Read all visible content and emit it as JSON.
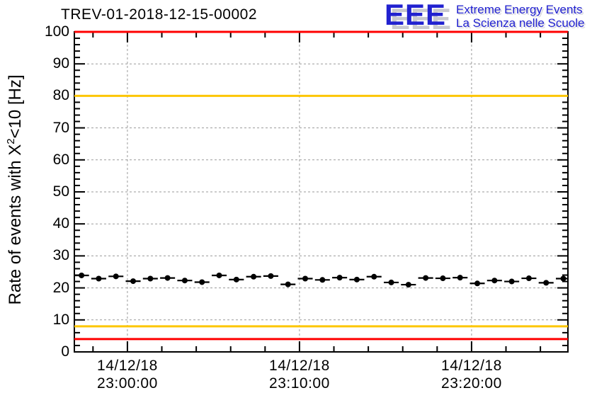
{
  "header": {
    "title": "TREV-01-2018-12-15-00002"
  },
  "logo": {
    "acronym": "EEE",
    "line1": "Extreme Energy Events",
    "line2": "La Scienza nelle Scuole",
    "blue": "#2222d0",
    "shadow_gray": "#c9c9cf"
  },
  "chart_data": {
    "type": "scatter",
    "title": "TREV-01-2018-12-15-00002",
    "ylabel": {
      "pre": "Rate of events with X",
      "sup": "2",
      "post": "<10 [Hz]"
    },
    "ylim": [
      0,
      100
    ],
    "y_major_step": 10,
    "y_minor_step": 2,
    "x_range": [
      "22:56:55",
      "23:25:36"
    ],
    "x_minor_step_seconds": 120,
    "x_ticks": [
      {
        "date": "14/12/18",
        "time": "23:00:00"
      },
      {
        "date": "14/12/18",
        "time": "23:10:00"
      },
      {
        "date": "14/12/18",
        "time": "23:20:00"
      }
    ],
    "grid": true,
    "grid_color": "#9a9a9a",
    "frame_color": "#000000",
    "thresholds": [
      {
        "value": 100,
        "color": "#ff0000"
      },
      {
        "value": 80,
        "color": "#fdc600"
      },
      {
        "value": 8,
        "color": "#fdc600"
      },
      {
        "value": 4,
        "color": "#ff0000"
      }
    ],
    "series": [
      {
        "name": "event-rate",
        "marker": "filled-circle",
        "color": "#000000",
        "bin_seconds": 60,
        "points": [
          {
            "t": "22:57:20",
            "v": 23.9
          },
          {
            "t": "22:58:20",
            "v": 22.9
          },
          {
            "t": "22:59:20",
            "v": 23.6
          },
          {
            "t": "23:00:20",
            "v": 22.1
          },
          {
            "t": "23:01:20",
            "v": 22.9
          },
          {
            "t": "23:02:20",
            "v": 23.1
          },
          {
            "t": "23:03:20",
            "v": 22.3
          },
          {
            "t": "23:04:20",
            "v": 21.8
          },
          {
            "t": "23:05:20",
            "v": 23.9
          },
          {
            "t": "23:06:20",
            "v": 22.6
          },
          {
            "t": "23:07:20",
            "v": 23.5
          },
          {
            "t": "23:08:20",
            "v": 23.7
          },
          {
            "t": "23:09:20",
            "v": 21.1
          },
          {
            "t": "23:10:20",
            "v": 22.9
          },
          {
            "t": "23:11:20",
            "v": 22.5
          },
          {
            "t": "23:12:20",
            "v": 23.2
          },
          {
            "t": "23:13:20",
            "v": 22.6
          },
          {
            "t": "23:14:20",
            "v": 23.5
          },
          {
            "t": "23:15:20",
            "v": 21.7
          },
          {
            "t": "23:16:20",
            "v": 21.0
          },
          {
            "t": "23:17:20",
            "v": 23.1
          },
          {
            "t": "23:18:20",
            "v": 23.0
          },
          {
            "t": "23:19:20",
            "v": 23.2
          },
          {
            "t": "23:20:20",
            "v": 21.4
          },
          {
            "t": "23:21:20",
            "v": 22.3
          },
          {
            "t": "23:22:20",
            "v": 22.0
          },
          {
            "t": "23:23:20",
            "v": 23.0
          },
          {
            "t": "23:24:20",
            "v": 21.6
          },
          {
            "t": "23:25:20",
            "v": 22.9
          }
        ]
      }
    ]
  }
}
